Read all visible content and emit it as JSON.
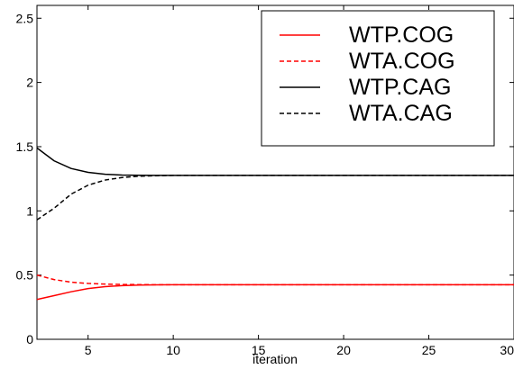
{
  "chart_data": {
    "type": "line",
    "title": "",
    "xlabel": "iteration",
    "ylabel": "",
    "xlim": [
      2,
      30
    ],
    "ylim": [
      0,
      2.6
    ],
    "xticks": [
      5,
      10,
      15,
      20,
      25,
      30
    ],
    "yticks": [
      0,
      0.5,
      1,
      1.5,
      2,
      2.5
    ],
    "xtick_labels": [
      "5",
      "10",
      "15",
      "20",
      "25",
      "30"
    ],
    "ytick_labels": [
      "0",
      "0.5",
      "1",
      "1.5",
      "2",
      "2.5"
    ],
    "grid": false,
    "legend_position": "top-right",
    "x": [
      2,
      3,
      4,
      5,
      6,
      7,
      8,
      9,
      10,
      11,
      12,
      13,
      14,
      15,
      16,
      17,
      18,
      19,
      20,
      21,
      22,
      23,
      24,
      25,
      26,
      27,
      28,
      29,
      30
    ],
    "series": [
      {
        "name": "WTP.COG",
        "color": "#ff0000",
        "dash": "solid",
        "values": [
          0.31,
          0.34,
          0.37,
          0.395,
          0.41,
          0.418,
          0.422,
          0.424,
          0.425,
          0.425,
          0.425,
          0.425,
          0.425,
          0.425,
          0.425,
          0.425,
          0.425,
          0.425,
          0.425,
          0.425,
          0.425,
          0.425,
          0.425,
          0.425,
          0.425,
          0.425,
          0.425,
          0.425,
          0.425
        ]
      },
      {
        "name": "WTA.COG",
        "color": "#ff0000",
        "dash": "dashed",
        "values": [
          0.5,
          0.465,
          0.445,
          0.435,
          0.43,
          0.427,
          0.426,
          0.425,
          0.425,
          0.425,
          0.425,
          0.425,
          0.425,
          0.425,
          0.425,
          0.425,
          0.425,
          0.425,
          0.425,
          0.425,
          0.425,
          0.425,
          0.425,
          0.425,
          0.425,
          0.425,
          0.425,
          0.425,
          0.425
        ]
      },
      {
        "name": "WTP.CAG",
        "color": "#000000",
        "dash": "solid",
        "values": [
          1.49,
          1.39,
          1.33,
          1.3,
          1.285,
          1.279,
          1.277,
          1.276,
          1.276,
          1.276,
          1.276,
          1.276,
          1.276,
          1.276,
          1.276,
          1.276,
          1.276,
          1.276,
          1.276,
          1.276,
          1.276,
          1.276,
          1.276,
          1.276,
          1.276,
          1.276,
          1.276,
          1.276,
          1.276
        ]
      },
      {
        "name": "WTA.CAG",
        "color": "#000000",
        "dash": "dashed",
        "values": [
          0.93,
          1.02,
          1.13,
          1.2,
          1.24,
          1.26,
          1.27,
          1.274,
          1.276,
          1.276,
          1.276,
          1.276,
          1.276,
          1.276,
          1.276,
          1.276,
          1.276,
          1.276,
          1.276,
          1.276,
          1.276,
          1.276,
          1.276,
          1.276,
          1.276,
          1.276,
          1.276,
          1.276,
          1.276
        ]
      }
    ]
  }
}
